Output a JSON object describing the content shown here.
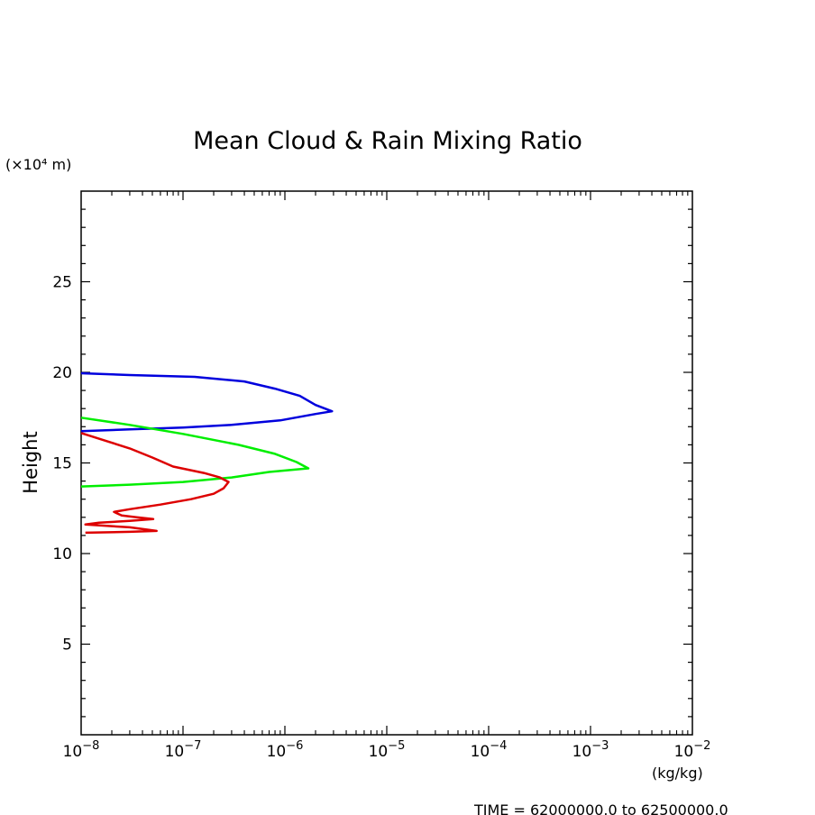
{
  "chart_data": {
    "type": "line",
    "title": "Mean Cloud & Rain Mixing Ratio",
    "ylabel": "Height",
    "yunit": "(×10⁴ m)",
    "xunit": "(kg/kg)",
    "xscale": "log",
    "xlim": [
      1e-08,
      0.01
    ],
    "ylim": [
      0,
      30
    ],
    "yticks": [
      5,
      10,
      15,
      20,
      25
    ],
    "ytick_labels": [
      "5",
      "10",
      "15",
      "20",
      "25"
    ],
    "xticks": [
      {
        "base": "10",
        "exp": "−8"
      },
      {
        "base": "10",
        "exp": "−7"
      },
      {
        "base": "10",
        "exp": "−6"
      },
      {
        "base": "10",
        "exp": "−5"
      },
      {
        "base": "10",
        "exp": "−4"
      },
      {
        "base": "10",
        "exp": "−3"
      },
      {
        "base": "10",
        "exp": "−2"
      }
    ],
    "grid": false,
    "footer": "TIME = 62000000.0 to 62500000.0",
    "series": [
      {
        "color": "#0000dd",
        "points": [
          [
            1e-08,
            19.95
          ],
          [
            3e-08,
            19.85
          ],
          [
            1.3e-07,
            19.75
          ],
          [
            4e-07,
            19.5
          ],
          [
            8e-07,
            19.1
          ],
          [
            1.4e-06,
            18.7
          ],
          [
            2e-06,
            18.2
          ],
          [
            2.9e-06,
            17.85
          ],
          [
            2e-06,
            17.7
          ],
          [
            9e-07,
            17.35
          ],
          [
            3e-07,
            17.1
          ],
          [
            1e-07,
            16.95
          ],
          [
            3e-08,
            16.85
          ],
          [
            1e-08,
            16.75
          ]
        ]
      },
      {
        "color": "#00ee00",
        "points": [
          [
            1e-08,
            17.5
          ],
          [
            3e-08,
            17.1
          ],
          [
            1e-07,
            16.6
          ],
          [
            3.5e-07,
            16.0
          ],
          [
            8e-07,
            15.5
          ],
          [
            1.3e-06,
            15.05
          ],
          [
            1.7e-06,
            14.7
          ],
          [
            7e-07,
            14.5
          ],
          [
            3e-07,
            14.2
          ],
          [
            1e-07,
            13.95
          ],
          [
            3e-08,
            13.8
          ],
          [
            1e-08,
            13.7
          ]
        ]
      },
      {
        "color": "#dd0000",
        "points": [
          [
            1e-08,
            16.65
          ],
          [
            1.8e-08,
            16.2
          ],
          [
            3e-08,
            15.8
          ],
          [
            5e-08,
            15.3
          ],
          [
            8e-08,
            14.8
          ],
          [
            1.6e-07,
            14.45
          ],
          [
            2.3e-07,
            14.2
          ],
          [
            2.8e-07,
            13.95
          ],
          [
            2.5e-07,
            13.6
          ],
          [
            2e-07,
            13.3
          ],
          [
            1.2e-07,
            13.0
          ],
          [
            6e-08,
            12.7
          ],
          [
            3e-08,
            12.45
          ],
          [
            2.1e-08,
            12.3
          ],
          [
            2.5e-08,
            12.1
          ],
          [
            3.5e-08,
            12.0
          ],
          [
            5.1e-08,
            11.9
          ],
          [
            3e-08,
            11.8
          ],
          [
            1.5e-08,
            11.7
          ],
          [
            1.1e-08,
            11.6
          ],
          [
            3e-08,
            11.45
          ],
          [
            5.5e-08,
            11.25
          ],
          [
            3e-08,
            11.2
          ],
          [
            1.1e-08,
            11.15
          ]
        ]
      }
    ]
  }
}
